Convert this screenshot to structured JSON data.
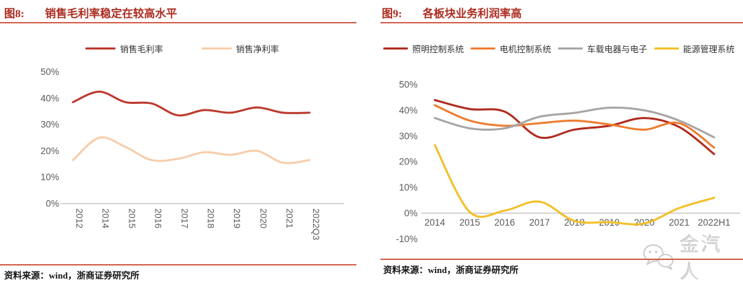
{
  "figure8": {
    "label": "图8:",
    "source": "资料来源：wind，浙商证券研究所"
  },
  "figure9": {
    "label": "图9:",
    "source": "资料来源：wind，浙商证券研究所"
  },
  "watermark": {
    "text": "金汽人",
    "icon": "wechat-icon"
  },
  "colors": {
    "title_red": "#AC2B1F",
    "rule_red": "#D2604B",
    "axis_text": "#595959",
    "axis_line": "#C8C8C8"
  },
  "chart_data": [
    {
      "type": "line",
      "title": "销售毛利率稳定在较高水平",
      "categories": [
        "2012",
        "2014",
        "2015",
        "2016",
        "2017",
        "2018",
        "2019",
        "2020",
        "2021",
        "2022Q3"
      ],
      "y_ticks": [
        "50%",
        "40%",
        "30%",
        "20%",
        "10%",
        "0%"
      ],
      "ylim": [
        0,
        50
      ],
      "grid": false,
      "legend_position": "top",
      "x_label_rotation": 90,
      "series": [
        {
          "name": "销售毛利率",
          "color": "#BC3A2E",
          "values": [
            38.5,
            42.5,
            38.5,
            38,
            33.5,
            35.5,
            34.5,
            36.5,
            34.5,
            34.5
          ]
        },
        {
          "name": "销售净利率",
          "color": "#F7CDAB",
          "values": [
            16.5,
            25,
            21.5,
            16.5,
            17,
            19.5,
            18.5,
            20,
            15.5,
            16.5
          ]
        }
      ]
    },
    {
      "type": "line",
      "title": "各板块业务利润率高",
      "categories": [
        "2014",
        "2015",
        "2016",
        "2017",
        "2018",
        "2019",
        "2020",
        "2021",
        "2022H1"
      ],
      "y_ticks": [
        "50%",
        "40%",
        "30%",
        "20%",
        "10%",
        "0%",
        "-10%"
      ],
      "ylim": [
        -10,
        50
      ],
      "grid": false,
      "legend_position": "top",
      "x_label_rotation": 0,
      "series": [
        {
          "name": "照明控制系统",
          "color": "#B02C20",
          "values": [
            44,
            40.5,
            39.5,
            29.5,
            32.5,
            34,
            37,
            33.5,
            23
          ]
        },
        {
          "name": "电机控制系统",
          "color": "#ED7D31",
          "values": [
            42,
            36,
            34,
            35,
            36,
            34.5,
            32.5,
            35,
            25.5
          ]
        },
        {
          "name": "车载电器与电子",
          "color": "#A6A6A6",
          "values": [
            37,
            33,
            33,
            37.5,
            39,
            41,
            40,
            36,
            29.5
          ]
        },
        {
          "name": "能源管理系统",
          "color": "#F2C029",
          "values": [
            26.5,
            0.5,
            1,
            4.5,
            -3,
            -3.5,
            -4,
            2,
            6
          ]
        }
      ]
    }
  ]
}
